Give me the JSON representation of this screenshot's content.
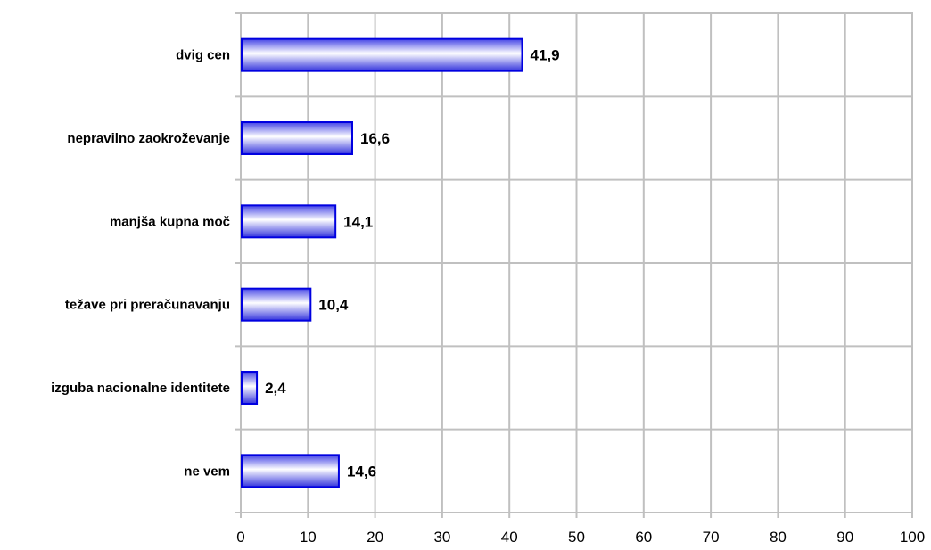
{
  "chart_data": {
    "type": "bar",
    "orientation": "horizontal",
    "categories": [
      "dvig cen",
      "nepravilno zaokroževanje",
      "manjša kupna moč",
      "težave pri preračunavanju",
      "izguba nacionalne identitete",
      "ne vem"
    ],
    "values": [
      41.9,
      16.6,
      14.1,
      10.4,
      2.4,
      14.6
    ],
    "data_labels": [
      "41,9",
      "16,6",
      "14,1",
      "10,4",
      "2,4",
      "14,6"
    ],
    "xlim": [
      0,
      100
    ],
    "x_ticks": [
      0,
      10,
      20,
      30,
      40,
      50,
      60,
      70,
      80,
      90,
      100
    ],
    "x_tick_labels": [
      "0",
      "10",
      "20",
      "30",
      "40",
      "50",
      "60",
      "70",
      "80",
      "90",
      "100"
    ],
    "grid": true,
    "legend": "none",
    "colors": {
      "bar_edge": "#0000e0",
      "bar_gradient_dark": "#3333dd",
      "bar_gradient_light": "#ffffff",
      "grid": "#c0c0c0"
    }
  }
}
